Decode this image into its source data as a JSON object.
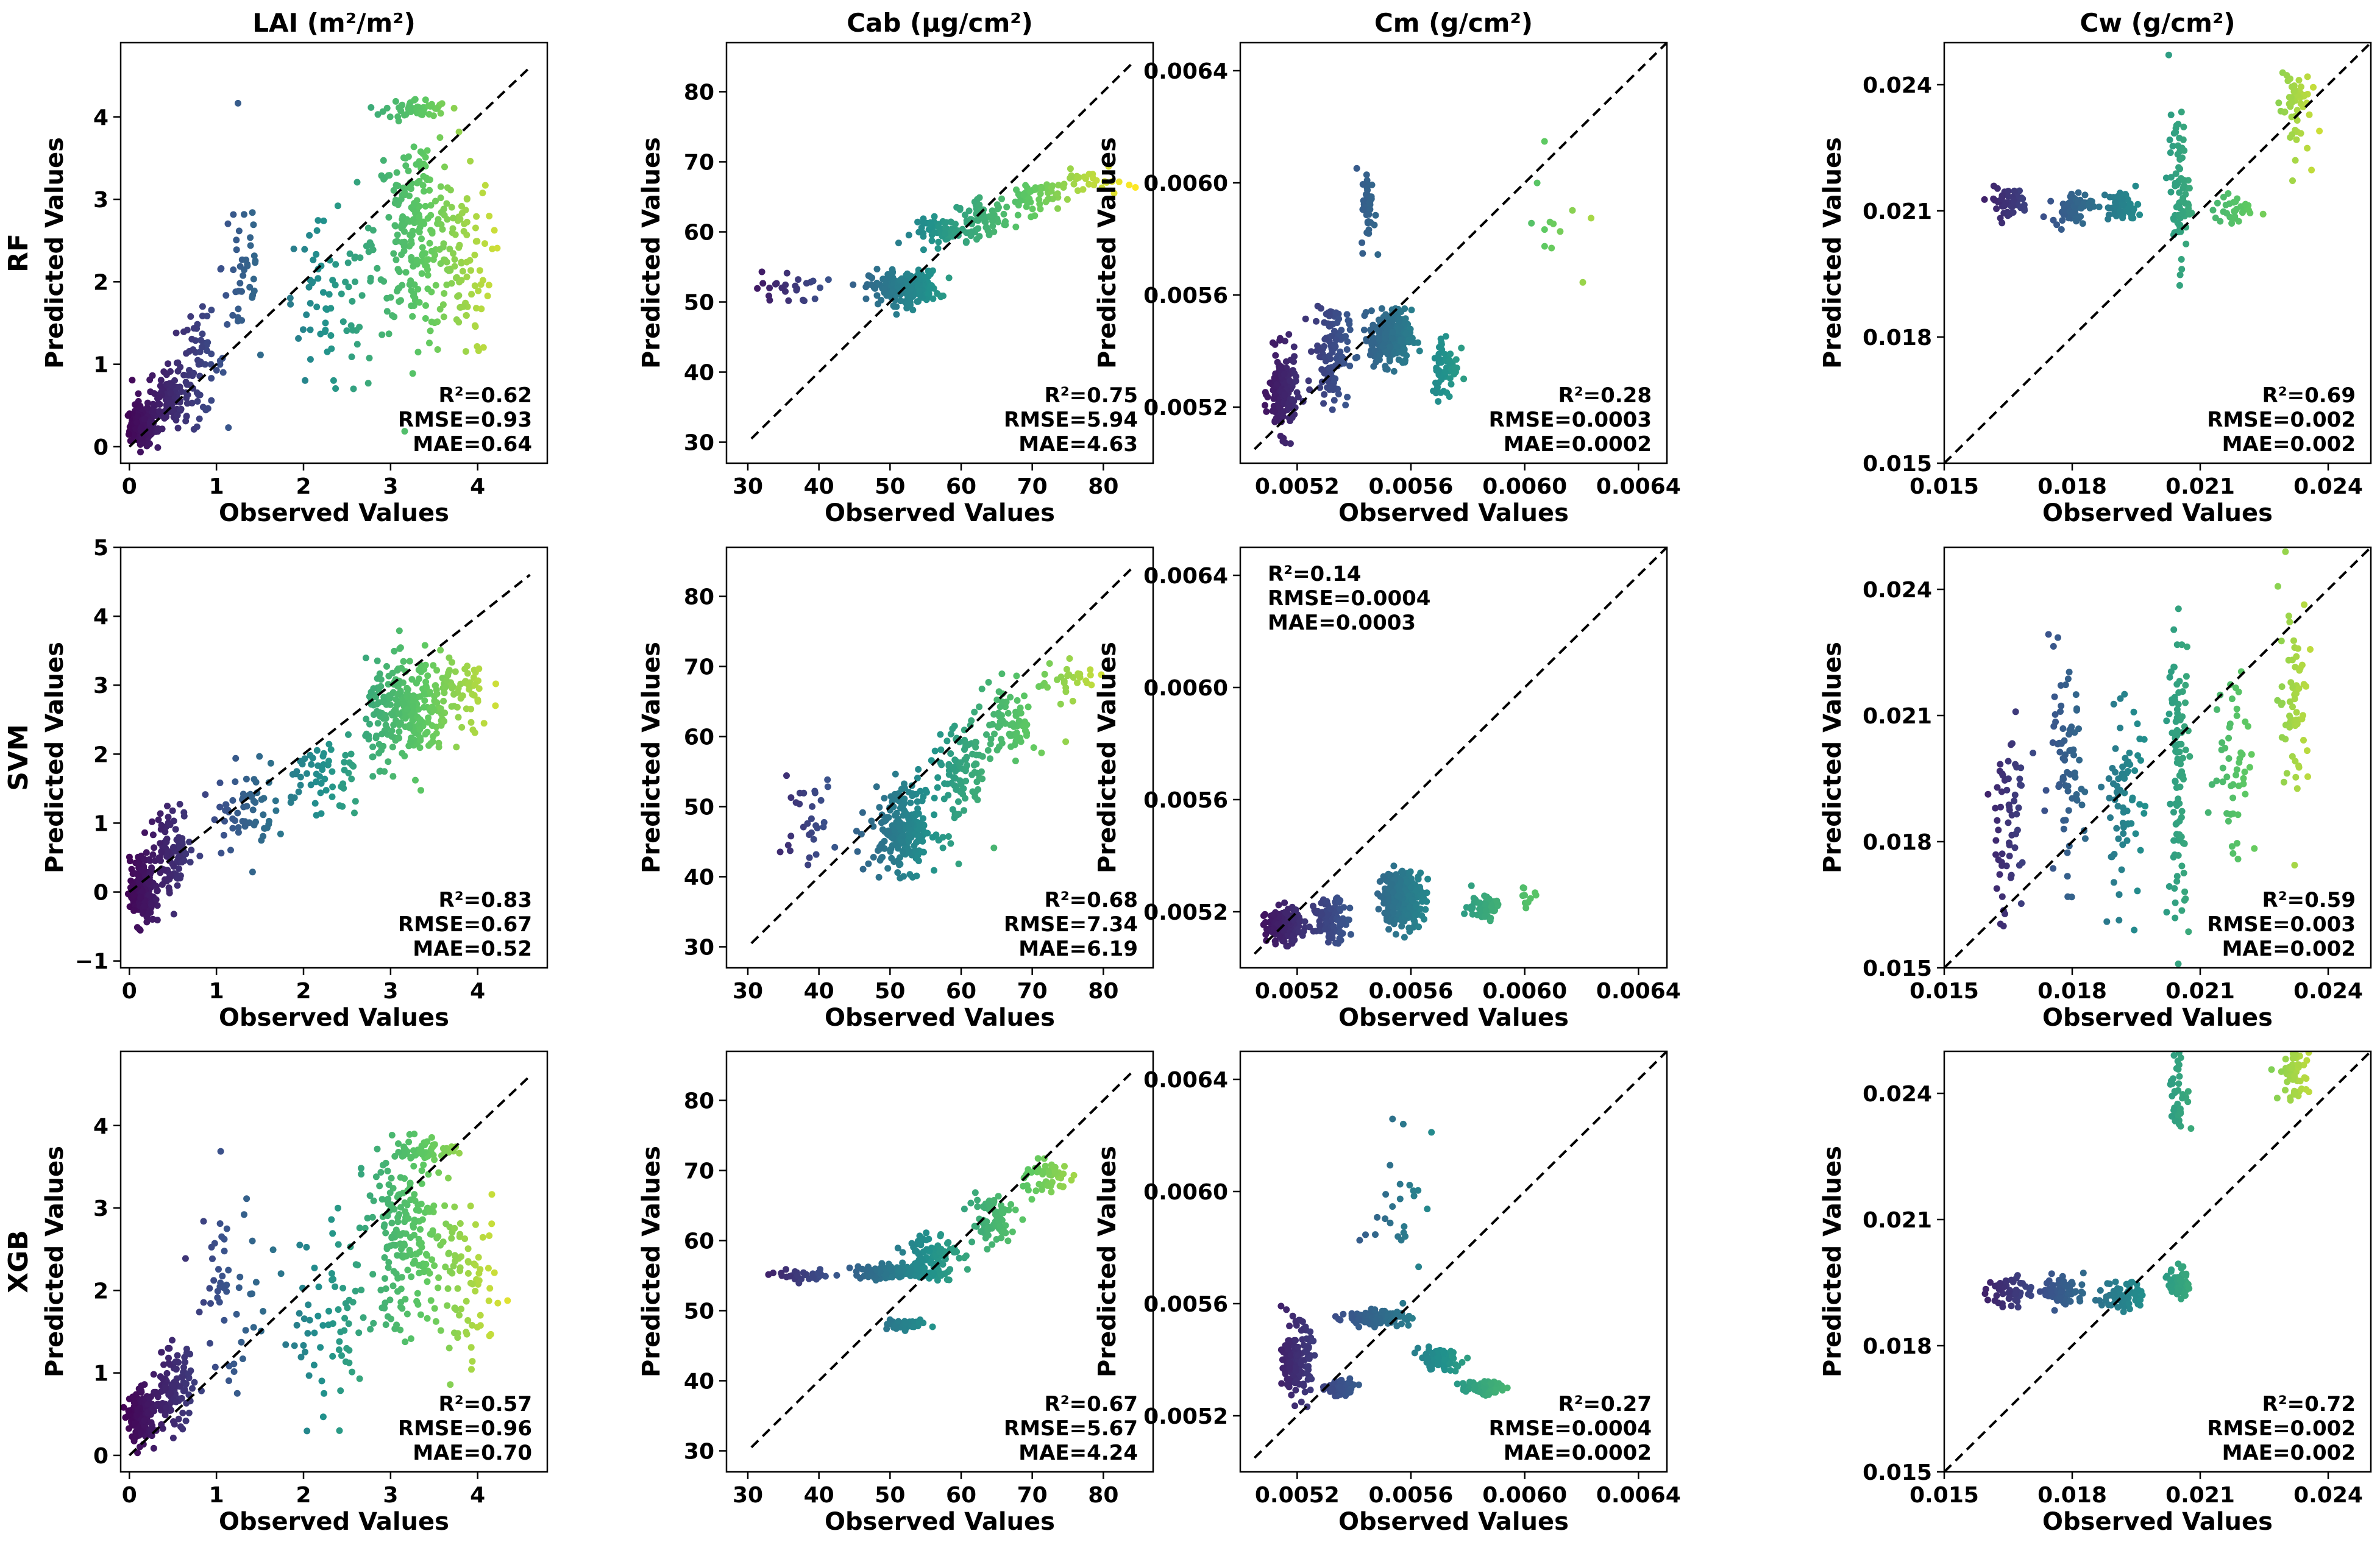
{
  "chart_data": {
    "type": "scatter",
    "layout": "3x4 grid",
    "columns": [
      {
        "title": "LAI (m²/m²)",
        "xlim": [
          -0.1,
          4.8
        ],
        "ylim": [
          -0.2,
          4.9
        ],
        "xticks": [
          "0",
          "1",
          "2",
          "3",
          "4"
        ],
        "xtickv": [
          0,
          1,
          2,
          3,
          4
        ],
        "yticks": [
          "0",
          "1",
          "2",
          "3",
          "4"
        ],
        "ytickv": [
          0,
          1,
          2,
          3,
          4
        ],
        "diag": [
          0,
          4.6
        ]
      },
      {
        "title": "Cab (μg/cm²)",
        "xlim": [
          27,
          87
        ],
        "ylim": [
          27,
          87
        ],
        "xticks": [
          "30",
          "40",
          "50",
          "60",
          "70",
          "80"
        ],
        "xtickv": [
          30,
          40,
          50,
          60,
          70,
          80
        ],
        "yticks": [
          "30",
          "40",
          "50",
          "60",
          "70",
          "80"
        ],
        "ytickv": [
          30,
          40,
          50,
          60,
          70,
          80
        ],
        "diag": [
          30.5,
          84
        ]
      },
      {
        "title": "Cm (g/cm²)",
        "xlim": [
          0.005,
          0.0065
        ],
        "ylim": [
          0.005,
          0.0065
        ],
        "xticks": [
          "0.0052",
          "0.0056",
          "0.0060",
          "0.0064"
        ],
        "xtickv": [
          0.0052,
          0.0056,
          0.006,
          0.0064
        ],
        "yticks": [
          "0.0052",
          "0.0056",
          "0.0060",
          "0.0064"
        ],
        "ytickv": [
          0.0052,
          0.0056,
          0.006,
          0.0064
        ],
        "diag": [
          0.00505,
          0.0065
        ]
      },
      {
        "title": "Cw (g/cm²)",
        "xlim": [
          0.015,
          0.025
        ],
        "ylim": [
          0.015,
          0.025
        ],
        "xticks": [
          "0.015",
          "0.018",
          "0.021",
          "0.024"
        ],
        "xtickv": [
          0.015,
          0.018,
          0.021,
          0.024
        ],
        "yticks": [
          "0.015",
          "0.018",
          "0.021",
          "0.024"
        ],
        "ytickv": [
          0.015,
          0.018,
          0.021,
          0.024
        ],
        "diag": [
          0.015,
          0.025
        ]
      }
    ],
    "rows": [
      {
        "model": "RF",
        "ylim_override": [
          null,
          null,
          null,
          null
        ]
      },
      {
        "model": "SVM",
        "ylim_override": [
          [
            -1.1,
            5.0
          ],
          null,
          null,
          null
        ]
      },
      {
        "model": "XGB",
        "ylim_override": [
          null,
          null,
          null,
          null
        ]
      }
    ],
    "svm_lai_yticks": [
      "−1",
      "0",
      "1",
      "2",
      "3",
      "4",
      "5"
    ],
    "svm_lai_ytickv": [
      -1,
      0,
      1,
      2,
      3,
      4,
      5
    ],
    "xlabel": "Observed Values",
    "ylabel": "Predicted Values",
    "metrics": [
      [
        {
          "r2": "R²=0.62",
          "rmse": "RMSE=0.93",
          "mae": "MAE=0.64",
          "pos": "bottom-right"
        },
        {
          "r2": "R²=0.75",
          "rmse": "RMSE=5.94",
          "mae": "MAE=4.63",
          "pos": "bottom-right"
        },
        {
          "r2": "R²=0.28",
          "rmse": "RMSE=0.0003",
          "mae": "MAE=0.0002",
          "pos": "bottom-right"
        },
        {
          "r2": "R²=0.69",
          "rmse": "RMSE=0.002",
          "mae": "MAE=0.002",
          "pos": "bottom-right"
        }
      ],
      [
        {
          "r2": "R²=0.83",
          "rmse": "RMSE=0.67",
          "mae": "MAE=0.52",
          "pos": "bottom-right"
        },
        {
          "r2": "R²=0.68",
          "rmse": "RMSE=7.34",
          "mae": "MAE=6.19",
          "pos": "bottom-right"
        },
        {
          "r2": "R²=0.14",
          "rmse": "RMSE=0.0004",
          "mae": "MAE=0.0003",
          "pos": "top-left"
        },
        {
          "r2": "R²=0.59",
          "rmse": "RMSE=0.003",
          "mae": "MAE=0.002",
          "pos": "bottom-right"
        }
      ],
      [
        {
          "r2": "R²=0.57",
          "rmse": "RMSE=0.96",
          "mae": "MAE=0.70",
          "pos": "bottom-right"
        },
        {
          "r2": "R²=0.67",
          "rmse": "RMSE=5.67",
          "mae": "MAE=4.24",
          "pos": "bottom-right"
        },
        {
          "r2": "R²=0.27",
          "rmse": "RMSE=0.0004",
          "mae": "MAE=0.0002",
          "pos": "bottom-right"
        },
        {
          "r2": "R²=0.72",
          "rmse": "RMSE=0.002",
          "mae": "MAE=0.002",
          "pos": "bottom-right"
        }
      ]
    ],
    "colormap": "viridis",
    "colormap_stops": [
      "#440154",
      "#3b528b",
      "#21918c",
      "#5ec962",
      "#fde725"
    ],
    "point_clusters_note": "Representative clusters (data units): [x, y, spreadX, spreadY, count]",
    "clusters": [
      [
        [
          [
            0.15,
            0.25,
            0.12,
            0.2,
            160
          ],
          [
            0.45,
            0.6,
            0.2,
            0.3,
            110
          ],
          [
            0.8,
            1.0,
            0.25,
            0.5,
            60
          ],
          [
            1.3,
            2.2,
            0.2,
            1.0,
            40
          ],
          [
            2.3,
            1.6,
            0.5,
            0.9,
            70
          ],
          [
            3.3,
            2.6,
            0.4,
            1.0,
            220
          ],
          [
            3.3,
            4.1,
            0.3,
            0.1,
            50
          ],
          [
            3.8,
            2.2,
            0.3,
            0.9,
            80
          ]
        ],
        [
          [
            36,
            52,
            4,
            2,
            25
          ],
          [
            52,
            52,
            4,
            2,
            200
          ],
          [
            58,
            60,
            4,
            1.5,
            60
          ],
          [
            63,
            62,
            3,
            2,
            60
          ],
          [
            70,
            65,
            3,
            2,
            60
          ],
          [
            78,
            67,
            4,
            1.5,
            30
          ]
        ],
        [
          [
            0.00515,
            0.00525,
            4e-05,
            0.00012,
            160
          ],
          [
            0.00532,
            0.0054,
            5e-05,
            0.00015,
            120
          ],
          [
            0.00553,
            0.00545,
            6e-05,
            8e-05,
            260
          ],
          [
            0.00545,
            0.0059,
            2e-05,
            0.00012,
            40
          ],
          [
            0.00572,
            0.00535,
            4e-05,
            0.0001,
            60
          ],
          [
            0.0061,
            0.00585,
            0.0001,
            0.0002,
            12
          ]
        ],
        [
          [
            0.0165,
            0.0212,
            0.0004,
            0.0003,
            50
          ],
          [
            0.018,
            0.0211,
            0.0004,
            0.0003,
            60
          ],
          [
            0.0192,
            0.0211,
            0.0003,
            0.0003,
            60
          ],
          [
            0.0205,
            0.0215,
            0.0002,
            0.0015,
            80
          ],
          [
            0.0218,
            0.021,
            0.0004,
            0.0003,
            30
          ],
          [
            0.0232,
            0.0235,
            0.0003,
            0.001,
            50
          ]
        ]
      ],
      [
        [
          [
            0.15,
            0.0,
            0.12,
            0.4,
            200
          ],
          [
            0.5,
            0.6,
            0.2,
            0.5,
            100
          ],
          [
            1.3,
            1.2,
            0.3,
            0.5,
            60
          ],
          [
            2.2,
            1.7,
            0.4,
            0.5,
            60
          ],
          [
            3.2,
            2.6,
            0.4,
            0.6,
            260
          ],
          [
            3.8,
            2.9,
            0.3,
            0.5,
            60
          ]
        ],
        [
          [
            38,
            48,
            4,
            5,
            30
          ],
          [
            52,
            47,
            4,
            5,
            220
          ],
          [
            60,
            55,
            3,
            6,
            90
          ],
          [
            67,
            62,
            3,
            5,
            80
          ],
          [
            75,
            68,
            4,
            2,
            30
          ]
        ],
        [
          [
            0.00515,
            0.00515,
            5e-05,
            5e-05,
            170
          ],
          [
            0.00532,
            0.00517,
            5e-05,
            6e-05,
            110
          ],
          [
            0.00557,
            0.00525,
            6e-05,
            8e-05,
            300
          ],
          [
            0.00585,
            0.00522,
            5e-05,
            4e-05,
            50
          ],
          [
            0.006,
            0.00525,
            3e-05,
            4e-05,
            10
          ]
        ],
        [
          [
            0.0165,
            0.0185,
            0.0004,
            0.002,
            60
          ],
          [
            0.0178,
            0.0195,
            0.0004,
            0.002,
            70
          ],
          [
            0.0192,
            0.019,
            0.0004,
            0.002,
            70
          ],
          [
            0.0205,
            0.0195,
            0.0002,
            0.003,
            100
          ],
          [
            0.0218,
            0.02,
            0.0004,
            0.002,
            50
          ],
          [
            0.0232,
            0.0215,
            0.0003,
            0.002,
            60
          ]
        ]
      ],
      [
        [
          [
            0.15,
            0.45,
            0.12,
            0.25,
            170
          ],
          [
            0.5,
            0.8,
            0.2,
            0.4,
            110
          ],
          [
            1.1,
            2.0,
            0.3,
            1.0,
            50
          ],
          [
            2.3,
            1.5,
            0.5,
            1.0,
            70
          ],
          [
            3.2,
            2.6,
            0.4,
            0.9,
            200
          ],
          [
            3.4,
            3.7,
            0.3,
            0.1,
            60
          ],
          [
            3.9,
            2.0,
            0.3,
            0.8,
            70
          ]
        ],
        [
          [
            38,
            55,
            4,
            0.6,
            30
          ],
          [
            50,
            55.5,
            4,
            0.8,
            120
          ],
          [
            52,
            48,
            3,
            0.5,
            40
          ],
          [
            56,
            58,
            3,
            3,
            100
          ],
          [
            64,
            63,
            3,
            4,
            70
          ],
          [
            72,
            69,
            3,
            2,
            50
          ]
        ],
        [
          [
            0.0052,
            0.0054,
            4e-05,
            0.0001,
            160
          ],
          [
            0.00535,
            0.0053,
            4e-05,
            2e-05,
            100
          ],
          [
            0.00548,
            0.00555,
            8e-05,
            2e-05,
            180
          ],
          [
            0.0057,
            0.0054,
            6e-05,
            3e-05,
            80
          ],
          [
            0.00585,
            0.0053,
            6e-05,
            2e-05,
            60
          ],
          [
            0.00555,
            0.00595,
            0.0001,
            0.0002,
            25
          ]
        ],
        [
          [
            0.0165,
            0.0193,
            0.0004,
            0.0003,
            50
          ],
          [
            0.0178,
            0.0193,
            0.0004,
            0.0003,
            70
          ],
          [
            0.0192,
            0.0192,
            0.0004,
            0.0003,
            70
          ],
          [
            0.0205,
            0.0195,
            0.0002,
            0.0003,
            60
          ],
          [
            0.0205,
            0.024,
            0.0002,
            0.0008,
            40
          ],
          [
            0.0232,
            0.0245,
            0.0003,
            0.0006,
            60
          ]
        ]
      ]
    ]
  }
}
